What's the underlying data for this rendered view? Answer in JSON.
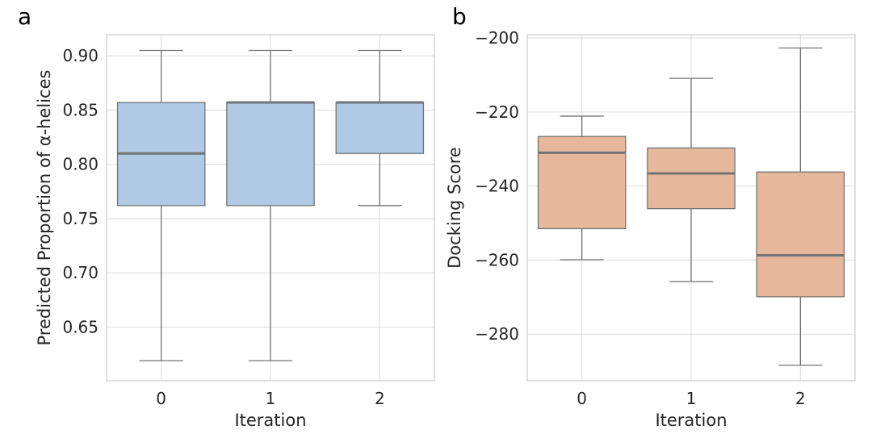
{
  "panels": {
    "a": {
      "letter": "a"
    },
    "b": {
      "letter": "b"
    }
  },
  "chart_data": [
    {
      "type": "box",
      "panel": "a",
      "title": "",
      "xlabel": "Iteration",
      "ylabel": "Predicted Proportion of α-helices",
      "categories": [
        "0",
        "1",
        "2"
      ],
      "ylim": [
        0.6005,
        0.9195
      ],
      "yticks": [
        0.65,
        0.7,
        0.75,
        0.8,
        0.85,
        0.9
      ],
      "ytick_labels": [
        "0.65",
        "0.70",
        "0.75",
        "0.80",
        "0.85",
        "0.90"
      ],
      "grid": true,
      "fill_color": "#b0c9e4",
      "line_color": "#737373",
      "boxes": [
        {
          "category": "0",
          "whisker_low": 0.619,
          "q1": 0.762,
          "median": 0.81,
          "q3": 0.857,
          "whisker_high": 0.905
        },
        {
          "category": "1",
          "whisker_low": 0.619,
          "q1": 0.762,
          "median": 0.857,
          "q3": 0.857,
          "whisker_high": 0.905
        },
        {
          "category": "2",
          "whisker_low": 0.762,
          "q1": 0.81,
          "median": 0.857,
          "q3": 0.857,
          "whisker_high": 0.905
        }
      ]
    },
    {
      "type": "box",
      "panel": "b",
      "title": "",
      "xlabel": "Iteration",
      "ylabel": "Docking Score",
      "categories": [
        "0",
        "1",
        "2"
      ],
      "ylim": [
        -292.6,
        -199.1
      ],
      "yticks": [
        -280,
        -260,
        -240,
        -220,
        -200
      ],
      "ytick_labels": [
        "−280",
        "−260",
        "−240",
        "−220",
        "−200"
      ],
      "grid": true,
      "fill_color": "#e6b79a",
      "line_color": "#737373",
      "boxes": [
        {
          "category": "0",
          "whisker_low": -259.9,
          "q1": -251.5,
          "median": -231.0,
          "q3": -226.6,
          "whisker_high": -221.1
        },
        {
          "category": "1",
          "whisker_low": -265.8,
          "q1": -246.1,
          "median": -236.6,
          "q3": -229.7,
          "whisker_high": -210.9
        },
        {
          "category": "2",
          "whisker_low": -288.4,
          "q1": -269.9,
          "median": -258.7,
          "q3": -236.2,
          "whisker_high": -202.7
        }
      ]
    }
  ]
}
